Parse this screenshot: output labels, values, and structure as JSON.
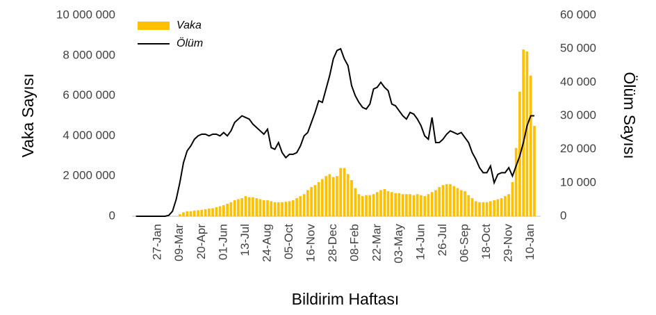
{
  "chart_data": {
    "type": "bar-line",
    "x_label": "Bildirim Haftası",
    "y_label": "Vaka Sayısı",
    "y2_label": "Ölüm Sayısı",
    "categories": [
      null,
      null,
      null,
      null,
      null,
      null,
      "27-Jan",
      null,
      null,
      null,
      null,
      null,
      "09-Mar",
      null,
      null,
      null,
      null,
      null,
      "20-Apr",
      null,
      null,
      null,
      null,
      null,
      "01-Jun",
      null,
      null,
      null,
      null,
      null,
      "13-Jul",
      null,
      null,
      null,
      null,
      null,
      "24-Aug",
      null,
      null,
      null,
      null,
      null,
      "05-Oct",
      null,
      null,
      null,
      null,
      null,
      "16-Nov",
      null,
      null,
      null,
      null,
      null,
      "28-Dec",
      null,
      null,
      null,
      null,
      null,
      "08-Feb",
      null,
      null,
      null,
      null,
      null,
      "22-Mar",
      null,
      null,
      null,
      null,
      null,
      "03-May",
      null,
      null,
      null,
      null,
      null,
      "14-Jun",
      null,
      null,
      null,
      null,
      null,
      "26-Jul",
      null,
      null,
      null,
      null,
      null,
      "06-Sep",
      null,
      null,
      null,
      null,
      null,
      "18-Oct",
      null,
      null,
      null,
      null,
      null,
      "29-Nov",
      null,
      null,
      null,
      null,
      null,
      "10-Jan",
      null
    ],
    "series": [
      {
        "name": "Vaka",
        "type": "bar",
        "color": "#ffc000",
        "values": [
          0,
          0,
          0,
          0,
          0,
          0,
          0,
          0,
          0,
          0,
          0,
          0,
          100000,
          200000,
          250000,
          250000,
          280000,
          300000,
          320000,
          350000,
          380000,
          400000,
          450000,
          500000,
          550000,
          620000,
          700000,
          800000,
          850000,
          900000,
          1000000,
          950000,
          950000,
          900000,
          850000,
          800000,
          800000,
          750000,
          700000,
          700000,
          700000,
          720000,
          750000,
          800000,
          900000,
          1000000,
          1100000,
          1300000,
          1450000,
          1550000,
          1700000,
          1850000,
          2000000,
          2100000,
          1950000,
          2000000,
          2400000,
          2400000,
          2100000,
          1800000,
          1400000,
          1100000,
          1000000,
          1050000,
          1050000,
          1100000,
          1200000,
          1300000,
          1350000,
          1250000,
          1200000,
          1150000,
          1150000,
          1100000,
          1100000,
          1100000,
          1050000,
          1100000,
          1050000,
          1000000,
          1100000,
          1200000,
          1300000,
          1450000,
          1550000,
          1600000,
          1600000,
          1500000,
          1400000,
          1300000,
          1250000,
          1050000,
          900000,
          750000,
          700000,
          700000,
          700000,
          750000,
          800000,
          850000,
          900000,
          1000000,
          1100000,
          1700000,
          3400000,
          6200000,
          8300000,
          8200000,
          7000000,
          4500000
        ]
      },
      {
        "name": "Ölüm",
        "type": "line",
        "axis": "y2",
        "color": "#000000",
        "values": [
          0,
          0,
          0,
          0,
          0,
          0,
          0,
          0,
          0,
          300,
          1500,
          5000,
          10000,
          16000,
          19500,
          21000,
          23000,
          24000,
          24500,
          24500,
          24000,
          24500,
          24500,
          24000,
          25000,
          24000,
          25500,
          28000,
          29000,
          30000,
          29500,
          29000,
          27500,
          26500,
          25500,
          24500,
          26000,
          20500,
          20000,
          22000,
          19000,
          17500,
          18500,
          18500,
          19000,
          21000,
          24000,
          25000,
          28000,
          31000,
          34500,
          34000,
          38000,
          42000,
          47000,
          49500,
          50000,
          47000,
          45000,
          39000,
          36000,
          34000,
          32500,
          32000,
          33500,
          38000,
          38500,
          40000,
          38500,
          37500,
          33500,
          33000,
          31500,
          30000,
          29000,
          31000,
          30500,
          29000,
          27000,
          24000,
          23000,
          29500,
          22000,
          22000,
          23000,
          24500,
          25500,
          25000,
          24500,
          25000,
          23500,
          22000,
          19000,
          17000,
          14500,
          13000,
          13000,
          15000,
          10000,
          12500,
          13000,
          13000,
          14500,
          12000,
          15000,
          18000,
          22000,
          27000,
          30000,
          30000
        ]
      }
    ],
    "ylim": [
      0,
      10000000
    ],
    "yticks": [
      0,
      {
        "value": 2000000,
        "label": "2 000 000"
      },
      {
        "value": 4000000,
        "label": "4 000 000"
      },
      {
        "value": 6000000,
        "label": "6 000 000"
      },
      {
        "value": 8000000,
        "label": "8 000 000"
      },
      {
        "value": 10000000,
        "label": "10 000 000"
      }
    ],
    "y2lim": [
      0,
      60000
    ],
    "y2ticks": [
      0,
      {
        "value": 10000,
        "label": "10 000"
      },
      {
        "value": 20000,
        "label": "20 000"
      },
      {
        "value": 30000,
        "label": "30 000"
      },
      {
        "value": 40000,
        "label": "40 000"
      },
      {
        "value": 50000,
        "label": "50 000"
      },
      {
        "value": 60000,
        "label": "60 000"
      }
    ],
    "legend": "top-left",
    "grid": false
  }
}
